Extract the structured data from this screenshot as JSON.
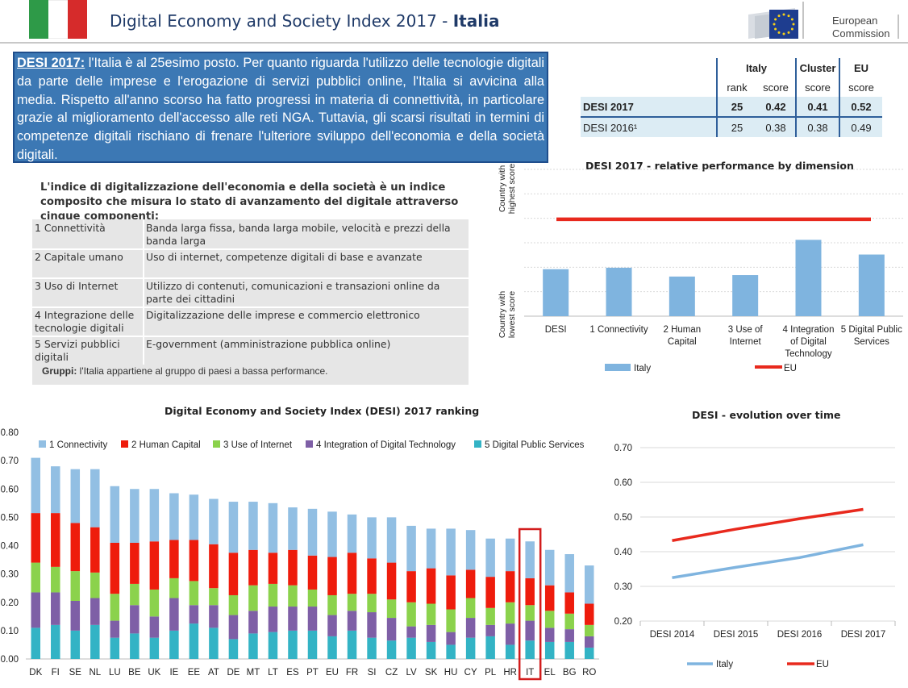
{
  "header": {
    "title_prefix": "Digital Economy and Society Index  2017 - ",
    "title_country": "Italia",
    "flag_colors": [
      "#2e9a48",
      "#ffffff",
      "#d62b2b"
    ],
    "logo_text_line1": "European",
    "logo_text_line2": "Commission"
  },
  "summary": {
    "lead": "DESI 2017:",
    "text": " l'Italia è al 25esimo posto. Per quanto riguarda l'utilizzo delle tecnologie digitali da parte delle imprese e l'erogazione di servizi pubblici online, l'Italia si avvicina alla media. Rispetto all'anno scorso ha fatto progressi in materia di connettività, in particolare grazie al miglioramento dell'accesso alle reti NGA. Tuttavia, gli scarsi risultati in termini di competenze digitali rischiano di frenare l'ulteriore sviluppo dell'economia e della società digitali."
  },
  "scores_table": {
    "head1": [
      "Italy",
      "Cluster",
      "EU"
    ],
    "head2": [
      "rank",
      "score",
      "score",
      "score"
    ],
    "rows": [
      {
        "label": "DESI 2017",
        "rank": "25",
        "score": "0.42",
        "cluster": "0.41",
        "eu": "0.52"
      },
      {
        "label": "DESI 2016¹",
        "rank": "25",
        "score": "0.38",
        "cluster": "0.38",
        "eu": "0.49"
      }
    ]
  },
  "intro": "L'indice di digitalizzazione dell'economia e della società è un indice composito che misura lo stato di avanzamento del digitale attraverso cinque componenti:",
  "components": [
    {
      "name": "1 Connettività",
      "desc": "Banda larga fissa, banda larga mobile, velocità e prezzi della banda larga"
    },
    {
      "name": "2 Capitale umano",
      "desc": "Uso di internet, competenze digitali di base e avanzate"
    },
    {
      "name": "3 Uso di Internet",
      "desc": "Utilizzo di contenuti, comunicazioni e transazioni online da parte dei cittadini"
    },
    {
      "name": "4 Integrazione delle tecnologie digitali",
      "desc": "Digitalizzazione delle imprese e commercio elettronico"
    },
    {
      "name": "5 Servizi pubblici digitali",
      "desc": "E-government (amministrazione pubblica online)"
    }
  ],
  "groups": {
    "label": "Gruppi:",
    "text": " l'Italia appartiene al gruppo di paesi a bassa performance."
  },
  "colors": {
    "connectivity": "#92bfe3",
    "human_capital": "#ee1c0c",
    "use_of_internet": "#8bd24c",
    "integration": "#7e5fa6",
    "public_services": "#33b3c5",
    "italy_line": "#7fb4df",
    "eu_line": "#e8291d",
    "title_blue": "#1f3a68"
  },
  "chart_data": [
    {
      "type": "bar",
      "title": "DESI 2017 - relative performance by dimension",
      "ylabel_top": "Country with highest score",
      "ylabel_bottom": "Country with lowest score",
      "categories": [
        "DESI",
        "1 Connectivity",
        "2 Human Capital",
        "3 Use of Internet",
        "4 Integration of Digital Technology",
        "5 Digital Public Services"
      ],
      "series": [
        {
          "name": "Italy",
          "type": "bar",
          "values": [
            0.32,
            0.33,
            0.27,
            0.28,
            0.52,
            0.42
          ]
        },
        {
          "name": "EU",
          "type": "line",
          "values": [
            0.66,
            0.66,
            0.66,
            0.66,
            0.66,
            0.66
          ]
        }
      ],
      "ylim": [
        0,
        1
      ],
      "grid": true,
      "legend": "bottom"
    },
    {
      "type": "bar",
      "stacked": true,
      "title": "Digital Economy and Society Index (DESI) 2017 ranking",
      "categories": [
        "DK",
        "FI",
        "SE",
        "NL",
        "LU",
        "BE",
        "UK",
        "IE",
        "EE",
        "AT",
        "DE",
        "MT",
        "LT",
        "ES",
        "PT",
        "EU",
        "FR",
        "SI",
        "CZ",
        "LV",
        "SK",
        "HU",
        "CY",
        "PL",
        "HR",
        "IT",
        "EL",
        "BG",
        "RO"
      ],
      "series": [
        {
          "name": "5 Digital Public Services",
          "values": [
            0.11,
            0.12,
            0.1,
            0.12,
            0.075,
            0.09,
            0.075,
            0.1,
            0.125,
            0.11,
            0.07,
            0.09,
            0.095,
            0.1,
            0.1,
            0.08,
            0.1,
            0.075,
            0.065,
            0.075,
            0.06,
            0.05,
            0.075,
            0.08,
            0.05,
            0.065,
            0.06,
            0.06,
            0.04
          ]
        },
        {
          "name": "4 Integration of Digital Technology",
          "values": [
            0.125,
            0.115,
            0.105,
            0.095,
            0.06,
            0.1,
            0.075,
            0.115,
            0.065,
            0.08,
            0.085,
            0.08,
            0.09,
            0.085,
            0.085,
            0.075,
            0.07,
            0.09,
            0.08,
            0.04,
            0.06,
            0.045,
            0.07,
            0.04,
            0.075,
            0.07,
            0.05,
            0.045,
            0.04
          ]
        },
        {
          "name": "3 Use of Internet",
          "values": [
            0.105,
            0.09,
            0.105,
            0.09,
            0.095,
            0.075,
            0.095,
            0.07,
            0.085,
            0.06,
            0.07,
            0.09,
            0.08,
            0.075,
            0.06,
            0.07,
            0.06,
            0.065,
            0.065,
            0.085,
            0.075,
            0.08,
            0.07,
            0.06,
            0.075,
            0.055,
            0.06,
            0.055,
            0.04
          ]
        },
        {
          "name": "2 Human Capital",
          "values": [
            0.175,
            0.19,
            0.17,
            0.16,
            0.18,
            0.145,
            0.17,
            0.135,
            0.145,
            0.155,
            0.15,
            0.125,
            0.11,
            0.125,
            0.12,
            0.135,
            0.145,
            0.125,
            0.13,
            0.11,
            0.125,
            0.12,
            0.1,
            0.11,
            0.11,
            0.095,
            0.09,
            0.075,
            0.075
          ]
        },
        {
          "name": "1 Connectivity",
          "values": [
            0.195,
            0.165,
            0.19,
            0.205,
            0.2,
            0.19,
            0.185,
            0.165,
            0.16,
            0.16,
            0.18,
            0.17,
            0.175,
            0.15,
            0.165,
            0.16,
            0.135,
            0.145,
            0.16,
            0.16,
            0.14,
            0.165,
            0.14,
            0.135,
            0.115,
            0.13,
            0.125,
            0.135,
            0.135
          ]
        }
      ],
      "ylim": [
        0,
        0.8
      ],
      "yticks": [
        "0.00",
        "0.10",
        "0.20",
        "0.30",
        "0.40",
        "0.50",
        "0.60",
        "0.70",
        "0.80"
      ],
      "highlight": "IT",
      "legend": "top"
    },
    {
      "type": "line",
      "title": "DESI - evolution over time",
      "categories": [
        "DESI 2014",
        "DESI 2015",
        "DESI 2016",
        "DESI 2017"
      ],
      "series": [
        {
          "name": "Italy",
          "values": [
            0.325,
            0.355,
            0.383,
            0.42
          ]
        },
        {
          "name": "EU",
          "values": [
            0.432,
            0.465,
            0.495,
            0.522
          ]
        }
      ],
      "ylim": [
        0.2,
        0.7
      ],
      "yticks": [
        "0.20",
        "0.30",
        "0.40",
        "0.50",
        "0.60",
        "0.70"
      ],
      "legend": "bottom"
    }
  ]
}
